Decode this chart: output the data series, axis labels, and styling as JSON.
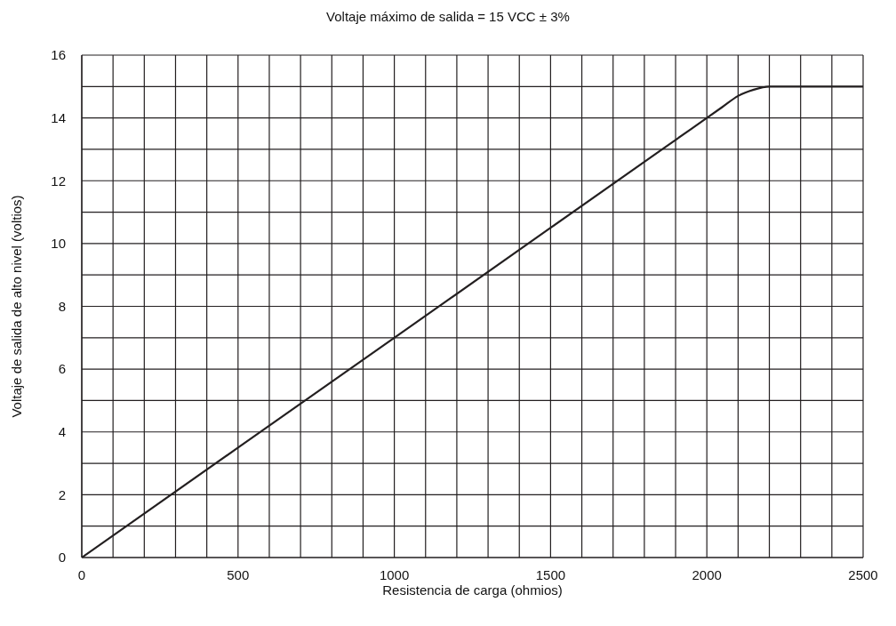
{
  "chart_data": {
    "type": "line",
    "title": "Voltaje máximo de salida = 15 VCC ± 3%",
    "xlabel": "Resistencia de carga (ohmios)",
    "ylabel": "Voltaje de salida de alto nivel (voltios)",
    "x": [
      0,
      500,
      1000,
      1500,
      1900,
      2000,
      2050,
      2100,
      2150,
      2200,
      2300,
      2500
    ],
    "series": [
      {
        "color": "#231f20",
        "values": [
          0,
          3.5,
          7,
          10.5,
          13.3,
          14,
          14.35,
          14.7,
          14.9,
          15,
          15,
          15
        ]
      }
    ],
    "xlim": [
      0,
      2500
    ],
    "xticks": [
      0,
      {
        "value": 100,
        "label": null
      },
      {
        "value": 200,
        "label": null
      },
      {
        "value": 300,
        "label": null
      },
      {
        "value": 400,
        "label": null
      },
      500,
      {
        "value": 600,
        "label": null
      },
      {
        "value": 700,
        "label": null
      },
      {
        "value": 800,
        "label": null
      },
      {
        "value": 900,
        "label": null
      },
      1000,
      {
        "value": 1100,
        "label": null
      },
      {
        "value": 1200,
        "label": null
      },
      {
        "value": 1300,
        "label": null
      },
      {
        "value": 1400,
        "label": null
      },
      1500,
      {
        "value": 1600,
        "label": null
      },
      {
        "value": 1700,
        "label": null
      },
      {
        "value": 1800,
        "label": null
      },
      {
        "value": 1900,
        "label": null
      },
      2000,
      {
        "value": 2100,
        "label": null
      },
      {
        "value": 2200,
        "label": null
      },
      {
        "value": 2300,
        "label": null
      },
      {
        "value": 2400,
        "label": null
      },
      2500
    ],
    "ylim": [
      0,
      16
    ],
    "yticks": [
      0,
      {
        "value": 1,
        "label": null
      },
      2,
      {
        "value": 3,
        "label": null
      },
      4,
      {
        "value": 5,
        "label": null
      },
      6,
      {
        "value": 7,
        "label": null
      },
      8,
      {
        "value": 9,
        "label": null
      },
      10,
      {
        "value": 11,
        "label": null
      },
      12,
      {
        "value": 13,
        "label": null
      },
      14,
      {
        "value": 15,
        "label": null
      },
      16
    ],
    "grid": true,
    "marker": "none",
    "line_style": "solid"
  }
}
